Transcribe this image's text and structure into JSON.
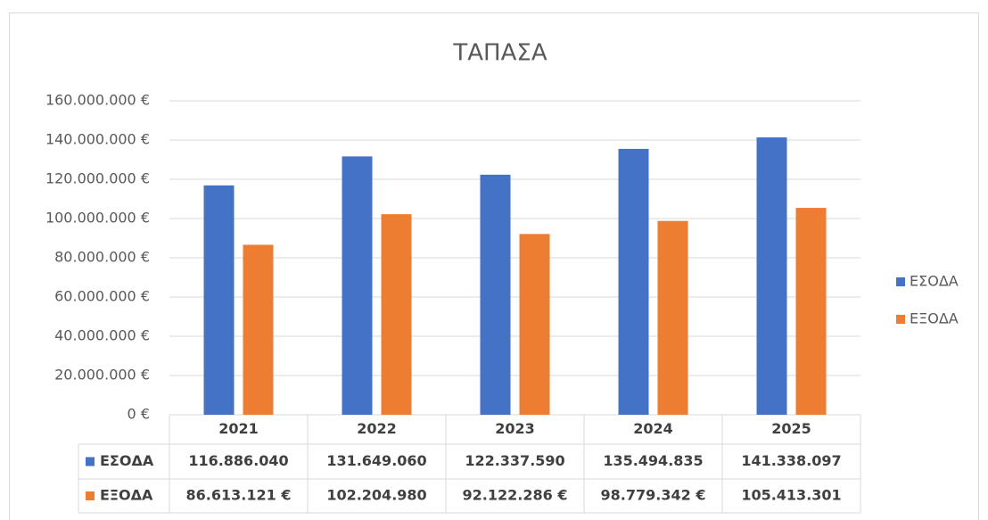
{
  "chart_data": {
    "type": "bar",
    "title": "ΤΑΠΑΣΑ",
    "categories": [
      "2021",
      "2022",
      "2023",
      "2024",
      "2025"
    ],
    "series": [
      {
        "name": "ΕΣΟΔΑ",
        "color": "#4472c4",
        "values": [
          116886040,
          131649060,
          122337590,
          135494835,
          141338097
        ],
        "value_labels": [
          "116.886.040",
          "131.649.060",
          "122.337.590",
          "135.494.835",
          "141.338.097"
        ]
      },
      {
        "name": "ΕΞΟΔΑ",
        "color": "#ed7d31",
        "values": [
          86613121,
          102204980,
          92122286,
          98779342,
          105413301
        ],
        "value_labels": [
          "86.613.121 €",
          "102.204.980",
          "92.122.286 €",
          "98.779.342 €",
          "105.413.301"
        ]
      }
    ],
    "ylim": [
      0,
      160000000
    ],
    "yticks": [
      {
        "value": 0,
        "label": "0 €"
      },
      {
        "value": 20000000,
        "label": "20.000.000 €"
      },
      {
        "value": 40000000,
        "label": "40.000.000 €"
      },
      {
        "value": 60000000,
        "label": "60.000.000 €"
      },
      {
        "value": 80000000,
        "label": "80.000.000 €"
      },
      {
        "value": 100000000,
        "label": "100.000.000 €"
      },
      {
        "value": 120000000,
        "label": "120.000.000 €"
      },
      {
        "value": 140000000,
        "label": "140.000.000 €"
      },
      {
        "value": 160000000,
        "label": "160.000.000 €"
      }
    ],
    "grid": true,
    "legend": "right"
  }
}
